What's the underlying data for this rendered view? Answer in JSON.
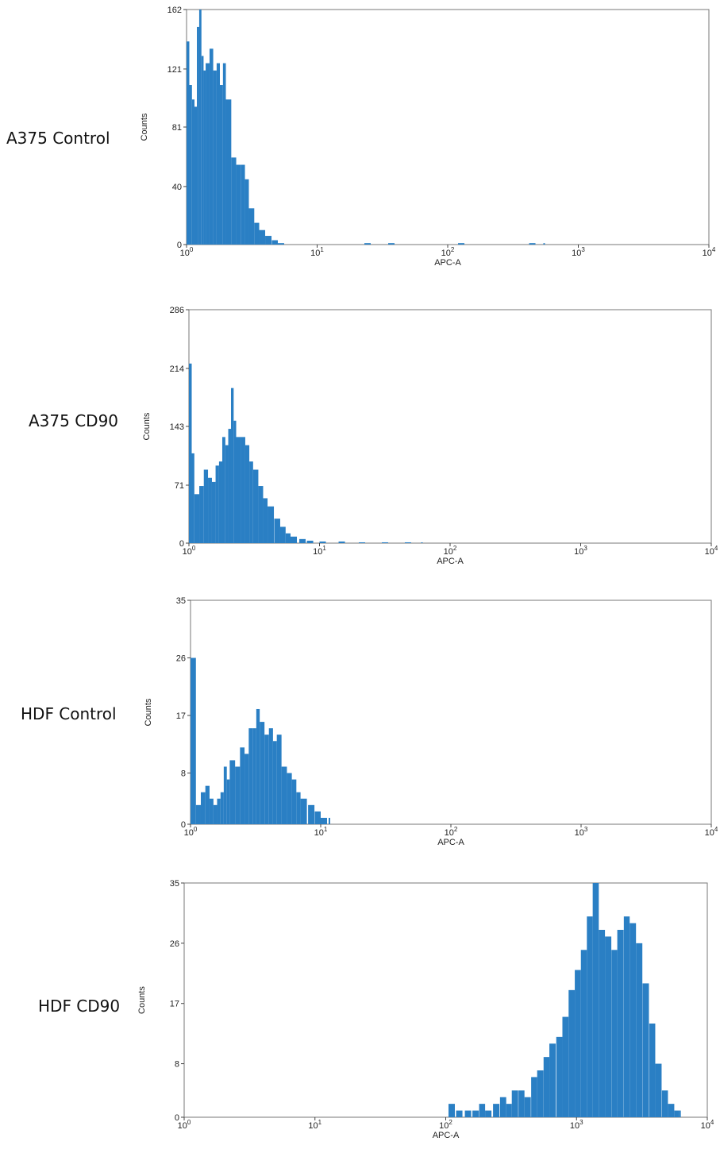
{
  "chart_data": [
    {
      "type": "bar",
      "row_label": "A375 Control",
      "xlabel": "APC-A",
      "ylabel": "Counts",
      "x_scale": "log",
      "xlim": [
        1,
        10000
      ],
      "ylim": [
        0,
        162
      ],
      "y_ticks": [
        "0",
        "40",
        "81",
        "121",
        "162"
      ],
      "y_tick_values": [
        0,
        40,
        81,
        121,
        162
      ],
      "x_ticks": [
        {
          "base": "10",
          "exp": "0",
          "value": 1
        },
        {
          "base": "10",
          "exp": "1",
          "value": 10
        },
        {
          "base": "10",
          "exp": "2",
          "value": 100
        },
        {
          "base": "10",
          "exp": "3",
          "value": 1000
        },
        {
          "base": "10",
          "exp": "4",
          "value": 10000
        }
      ],
      "series": [
        {
          "x": [
            1.0,
            1.05,
            1.1,
            1.15,
            1.2,
            1.25,
            1.3,
            1.35,
            1.4,
            1.5,
            1.6,
            1.7,
            1.8,
            1.9,
            2.0,
            2.2,
            2.4,
            2.6,
            2.8,
            3.0,
            3.3,
            3.6,
            4.0,
            4.5,
            5.0,
            23,
            35,
            120,
            420,
            540
          ],
          "values": [
            140,
            110,
            100,
            95,
            150,
            162,
            130,
            120,
            125,
            135,
            120,
            125,
            110,
            125,
            100,
            60,
            55,
            55,
            45,
            25,
            15,
            10,
            6,
            3,
            1,
            1,
            1,
            1,
            1,
            1
          ]
        }
      ]
    },
    {
      "type": "bar",
      "row_label": "A375 CD90",
      "xlabel": "APC-A",
      "ylabel": "Counts",
      "x_scale": "log",
      "xlim": [
        1,
        10000
      ],
      "ylim": [
        0,
        286
      ],
      "y_ticks": [
        "0",
        "71",
        "143",
        "214",
        "286"
      ],
      "y_tick_values": [
        0,
        71,
        143,
        214,
        286
      ],
      "x_ticks": [
        {
          "base": "10",
          "exp": "0",
          "value": 1
        },
        {
          "base": "10",
          "exp": "1",
          "value": 10
        },
        {
          "base": "10",
          "exp": "2",
          "value": 100
        },
        {
          "base": "10",
          "exp": "3",
          "value": 1000
        },
        {
          "base": "10",
          "exp": "4",
          "value": 10000
        }
      ],
      "series": [
        {
          "x": [
            1.0,
            1.05,
            1.1,
            1.2,
            1.3,
            1.4,
            1.5,
            1.6,
            1.7,
            1.8,
            1.9,
            2.0,
            2.1,
            2.2,
            2.3,
            2.5,
            2.7,
            2.9,
            3.1,
            3.4,
            3.7,
            4.0,
            4.5,
            5.0,
            5.5,
            6.0,
            7.0,
            8.0,
            10,
            14,
            20,
            30,
            45,
            60
          ],
          "values": [
            220,
            110,
            60,
            70,
            90,
            80,
            75,
            95,
            100,
            130,
            120,
            140,
            190,
            150,
            130,
            130,
            120,
            100,
            90,
            70,
            55,
            45,
            30,
            20,
            12,
            8,
            5,
            3,
            2,
            2,
            1,
            1,
            1,
            1
          ]
        }
      ]
    },
    {
      "type": "bar",
      "row_label": "HDF Control",
      "xlabel": "APC-A",
      "ylabel": "Counts",
      "x_scale": "log",
      "xlim": [
        1,
        10000
      ],
      "ylim": [
        0,
        35
      ],
      "y_ticks": [
        "0",
        "8",
        "17",
        "26",
        "35"
      ],
      "y_tick_values": [
        0,
        8,
        17,
        26,
        35
      ],
      "x_ticks": [
        {
          "base": "10",
          "exp": "0",
          "value": 1
        },
        {
          "base": "10",
          "exp": "1",
          "value": 10
        },
        {
          "base": "10",
          "exp": "2",
          "value": 100
        },
        {
          "base": "10",
          "exp": "3",
          "value": 1000
        },
        {
          "base": "10",
          "exp": "4",
          "value": 10000
        }
      ],
      "series": [
        {
          "x": [
            1.0,
            1.1,
            1.2,
            1.3,
            1.4,
            1.5,
            1.6,
            1.7,
            1.8,
            1.9,
            2.0,
            2.2,
            2.4,
            2.6,
            2.8,
            3.0,
            3.2,
            3.4,
            3.7,
            4.0,
            4.3,
            4.6,
            5.0,
            5.5,
            6.0,
            6.5,
            7.0,
            8.0,
            9.0,
            10,
            11.5
          ],
          "values": [
            26,
            3,
            5,
            6,
            4,
            3,
            4,
            5,
            9,
            7,
            10,
            9,
            12,
            11,
            15,
            15,
            18,
            16,
            14,
            15,
            13,
            14,
            9,
            8,
            7,
            5,
            4,
            3,
            2,
            1,
            1
          ]
        }
      ]
    },
    {
      "type": "bar",
      "row_label": "HDF CD90",
      "xlabel": "APC-A",
      "ylabel": "Counts",
      "x_scale": "log",
      "xlim": [
        1,
        10000
      ],
      "ylim": [
        0,
        35
      ],
      "y_ticks": [
        "0",
        "8",
        "17",
        "26",
        "35"
      ],
      "y_tick_values": [
        0,
        8,
        17,
        26,
        35
      ],
      "x_ticks": [
        {
          "base": "10",
          "exp": "0",
          "value": 1
        },
        {
          "base": "10",
          "exp": "1",
          "value": 10
        },
        {
          "base": "10",
          "exp": "2",
          "value": 100
        },
        {
          "base": "10",
          "exp": "3",
          "value": 1000
        },
        {
          "base": "10",
          "exp": "4",
          "value": 10000
        }
      ],
      "series": [
        {
          "x": [
            105,
            120,
            140,
            160,
            180,
            200,
            230,
            260,
            290,
            320,
            360,
            400,
            450,
            500,
            560,
            620,
            700,
            780,
            870,
            970,
            1080,
            1200,
            1330,
            1480,
            1650,
            1850,
            2050,
            2300,
            2550,
            2850,
            3200,
            3600,
            4000,
            4500,
            5000,
            5600,
            6100
          ],
          "values": [
            2,
            1,
            1,
            1,
            2,
            1,
            2,
            3,
            2,
            4,
            4,
            3,
            6,
            7,
            9,
            11,
            12,
            15,
            19,
            22,
            25,
            30,
            35,
            28,
            27,
            25,
            28,
            30,
            29,
            26,
            20,
            14,
            8,
            4,
            2,
            1,
            1
          ]
        }
      ]
    }
  ]
}
